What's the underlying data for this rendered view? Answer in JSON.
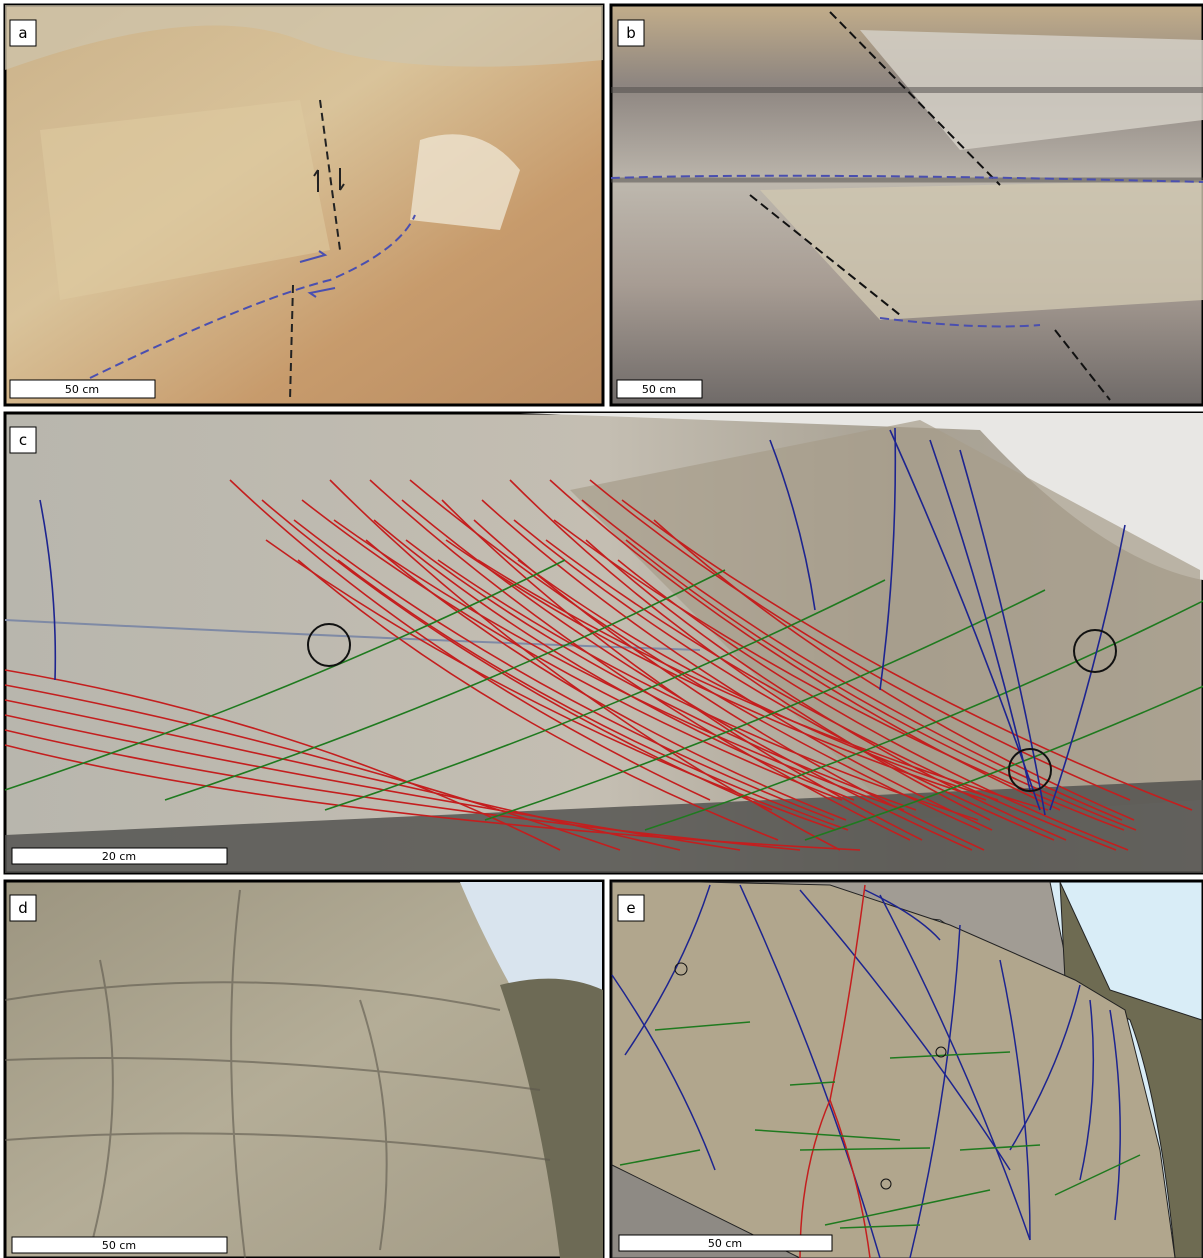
{
  "panels": [
    {
      "label": "a",
      "scale_bar": "50 cm"
    },
    {
      "label": "b",
      "scale_bar": "50 cm"
    },
    {
      "label": "c",
      "scale_bar": "20 cm"
    },
    {
      "label": "d",
      "scale_bar": "50 cm"
    },
    {
      "label": "e",
      "scale_bar": "50 cm"
    }
  ]
}
